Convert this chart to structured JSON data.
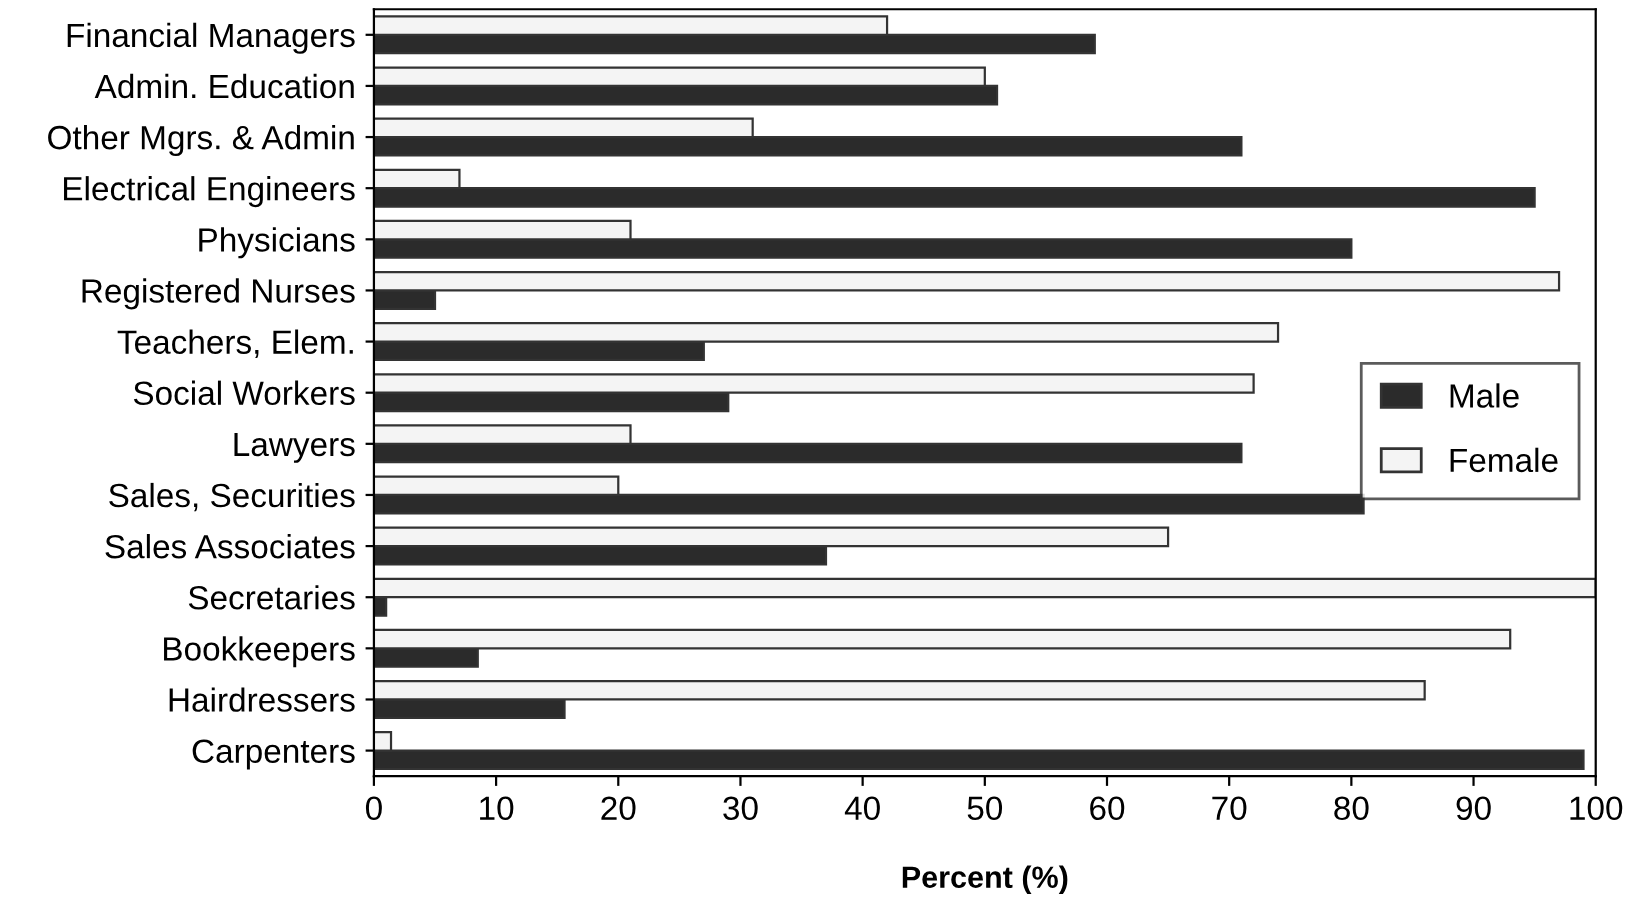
{
  "chart_data": {
    "type": "bar",
    "orientation": "horizontal",
    "xlabel": "Percent (%)",
    "categories": [
      "Financial Managers",
      "Admin. Education",
      "Other Mgrs. & Admin",
      "Electrical Engineers",
      "Physicians",
      "Registered Nurses",
      "Teachers, Elem.",
      "Social Workers",
      "Lawyers",
      "Sales, Securities",
      "Sales Associates",
      "Secretaries",
      "Bookkeepers",
      "Hairdressers",
      "Carpenters"
    ],
    "series": [
      {
        "name": "Male",
        "color": "#2b2b2b",
        "values": [
          59,
          51,
          71,
          95,
          80,
          5,
          27,
          29,
          71,
          81,
          37,
          1,
          8.5,
          15.6,
          99
        ]
      },
      {
        "name": "Female",
        "color": "#f4f4f4",
        "values": [
          42,
          50,
          31,
          7,
          21,
          97,
          74,
          72,
          21,
          20,
          65,
          100,
          93,
          86,
          1.4
        ]
      }
    ],
    "xlim": [
      0,
      100
    ],
    "xticks": [
      0,
      10,
      20,
      30,
      40,
      50,
      60,
      70,
      80,
      90,
      100
    ],
    "legend": "center right",
    "grid": false
  }
}
